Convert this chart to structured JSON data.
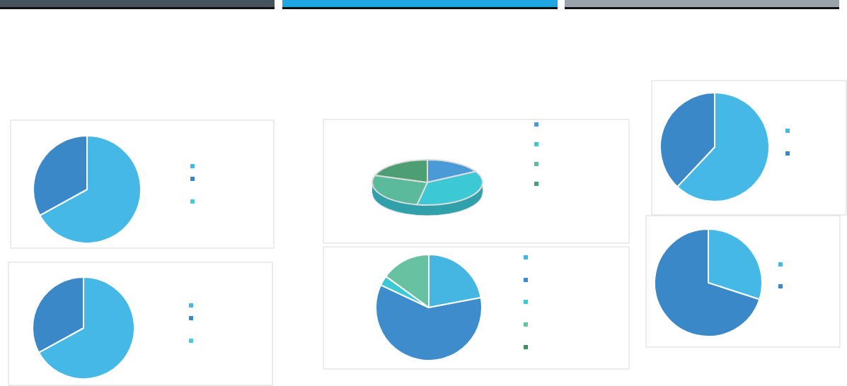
{
  "chart_data": [
    {
      "type": "pie",
      "categories": [
        null,
        null,
        null
      ],
      "values": [
        67,
        33,
        0
      ],
      "colors": [
        "#45b8e6",
        "#3a88c8",
        "#45ccd8"
      ]
    },
    {
      "type": "pie",
      "categories": [
        null,
        null,
        null
      ],
      "values": [
        67,
        33,
        0
      ],
      "colors": [
        "#45b8e6",
        "#3a88c8",
        "#45ccd8"
      ]
    },
    {
      "type": "pie",
      "categories": [
        null,
        null,
        null,
        null
      ],
      "values": [
        17,
        36,
        27,
        20
      ],
      "colors": [
        "#4a9ad8",
        "#3cc8d4",
        "#5cba9c",
        "#4e9e74"
      ]
    },
    {
      "type": "pie",
      "categories": [
        null,
        null,
        null,
        null,
        null
      ],
      "values": [
        22,
        60,
        3,
        15,
        0
      ],
      "colors": [
        "#45b6e2",
        "#3e8ccc",
        "#3cc8d4",
        "#66c2a0",
        "#3e8e5e"
      ]
    },
    {
      "type": "pie",
      "categories": [
        null,
        null
      ],
      "values": [
        62,
        38
      ],
      "colors": [
        "#45b8e6",
        "#3a88c8"
      ]
    },
    {
      "type": "pie",
      "categories": [
        null,
        null
      ],
      "values": [
        30,
        70
      ],
      "colors": [
        "#45b8e6",
        "#3a88c8"
      ]
    }
  ]
}
